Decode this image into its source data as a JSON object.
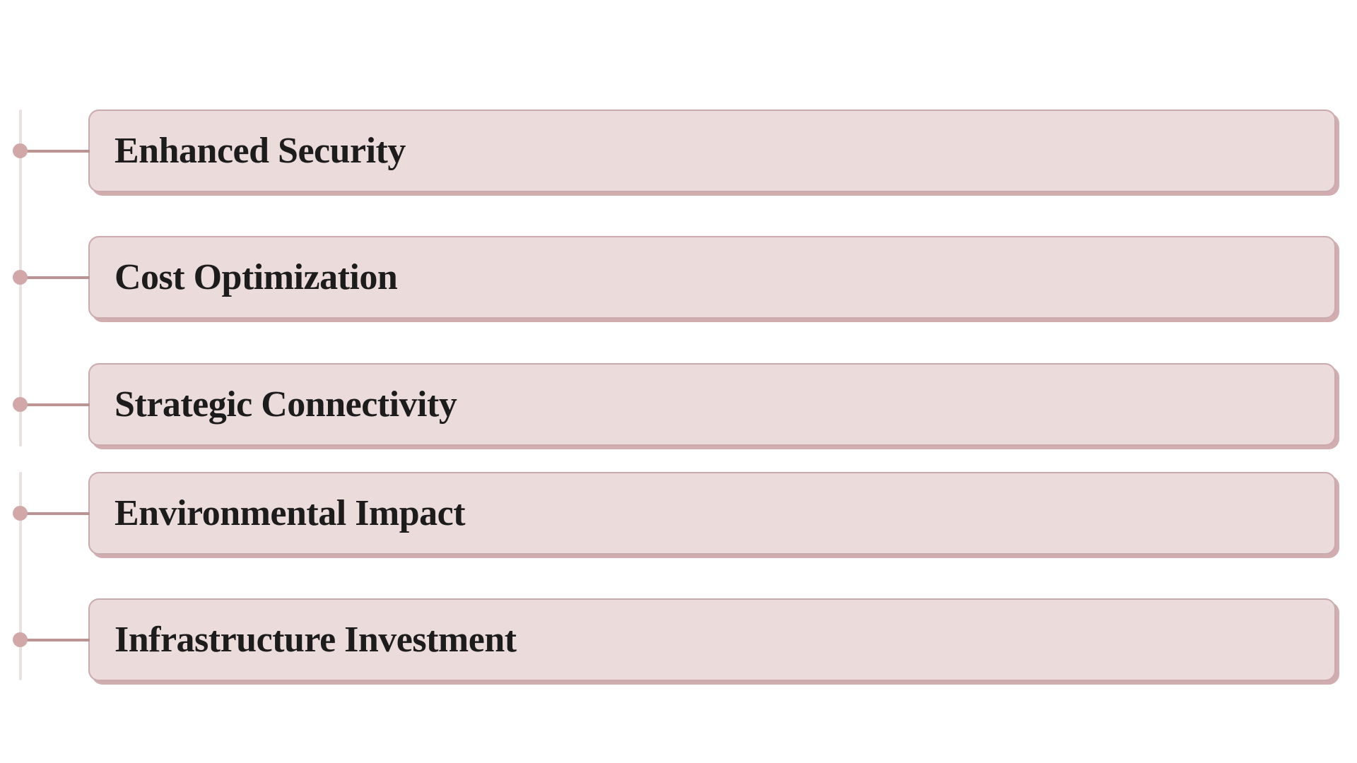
{
  "timeline": {
    "items": [
      {
        "label": "Enhanced Security"
      },
      {
        "label": "Cost Optimization"
      },
      {
        "label": "Strategic Connectivity"
      },
      {
        "label": "Environmental Impact"
      },
      {
        "label": "Infrastructure Investment"
      }
    ]
  },
  "colors": {
    "background": "#ffffff",
    "card_fill": "#ecdbdb",
    "card_border": "#cbaaad",
    "card_shadow": "#d1adb0",
    "dot": "#d2a7a8",
    "connector_line": "#bc9494",
    "timeline_line": "#eae1e1",
    "label_text": "#1c1c1c"
  }
}
